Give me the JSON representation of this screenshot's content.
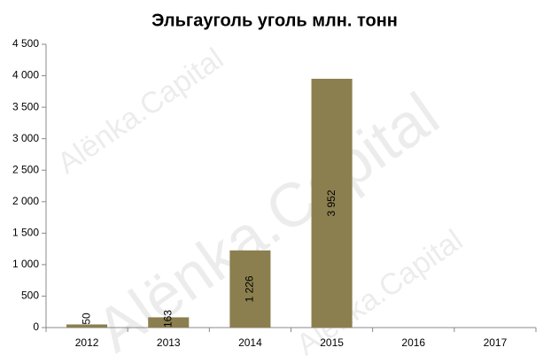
{
  "chart_data": {
    "type": "bar",
    "title": "Эльгауголь уголь млн. тонн",
    "categories": [
      "2012",
      "2013",
      "2014",
      "2015",
      "2016",
      "2017"
    ],
    "values": [
      50,
      163,
      1226,
      3952,
      null,
      null
    ],
    "value_labels": [
      "50",
      "163",
      "1 226",
      "3 952",
      null,
      null
    ],
    "color": "#8c7f4f",
    "ylim": [
      0,
      4500
    ],
    "yticks": [
      0,
      500,
      {
        "value": 1000,
        "label": "1 000"
      },
      {
        "value": 1500,
        "label": "1 500"
      },
      {
        "value": 2000,
        "label": "2 000"
      },
      {
        "value": 2500,
        "label": "2 500"
      },
      {
        "value": 3000,
        "label": "3 000"
      },
      {
        "value": 3500,
        "label": "3 500"
      },
      {
        "value": 4000,
        "label": "4 000"
      },
      {
        "value": 4500,
        "label": "4 500"
      }
    ],
    "grid": false,
    "watermark": "Alënka.Capital"
  }
}
